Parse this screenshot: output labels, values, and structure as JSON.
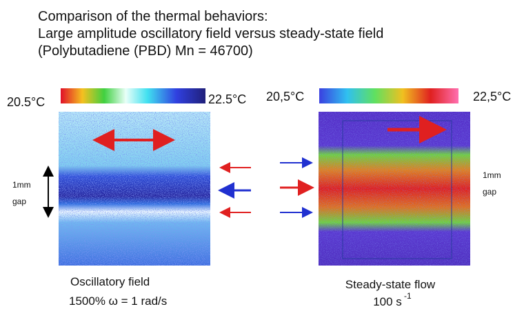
{
  "header": {
    "lines": [
      "Comparison of the thermal behaviors:",
      "Large amplitude oscillatory field versus steady-state field",
      "(Polybutadiene (PBD) Mn = 46700)"
    ]
  },
  "left_panel": {
    "scale_min": "20.5°C",
    "scale_max": "22.5°C",
    "gap_label": [
      "1mm",
      "gap"
    ],
    "caption": [
      "Oscillatory field",
      "1500% ω = 1 rad/s"
    ]
  },
  "right_panel": {
    "scale_min": "20,5°C",
    "scale_max": "22,5°C",
    "gap_label": [
      "1mm",
      "gap"
    ],
    "caption": "Steady-state flow",
    "rate": "100 s",
    "rate_exponent": "-1"
  }
}
